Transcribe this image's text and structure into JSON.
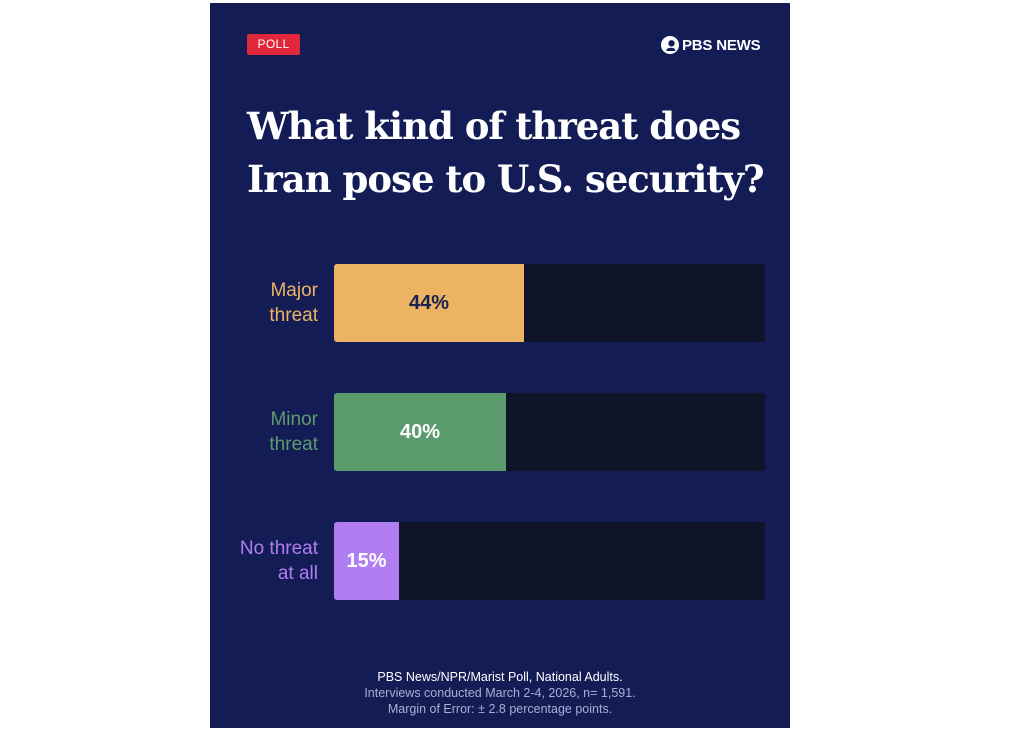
{
  "badge": "POLL",
  "logo": {
    "icon": "pbs-head-icon",
    "text": "PBS NEWS"
  },
  "title_line1": "What kind of threat does",
  "title_line2": "Iran pose to U.S. security?",
  "chart_data": {
    "type": "bar",
    "orientation": "horizontal",
    "title": "What kind of threat does Iran pose to U.S. security?",
    "categories": [
      "Major threat",
      "Minor threat",
      "No threat at all"
    ],
    "category_lines": [
      [
        "Major",
        "threat"
      ],
      [
        "Minor",
        "threat"
      ],
      [
        "No threat",
        "at all"
      ]
    ],
    "values": [
      44,
      40,
      15
    ],
    "value_labels": [
      "44%",
      "40%",
      "15%"
    ],
    "colors": [
      "#ecb363",
      "#5c9b6e",
      "#b07ef2"
    ],
    "label_text_colors": [
      "#1a2153",
      "#ffffff",
      "#ffffff"
    ],
    "xlim": [
      0,
      100
    ]
  },
  "footer": {
    "source": "PBS News/NPR/Marist Poll, National Adults.",
    "dates": "Interviews conducted March 2-4, 2026, n= 1,591.",
    "margin": "Margin of Error: ± 2.8 percentage points."
  }
}
